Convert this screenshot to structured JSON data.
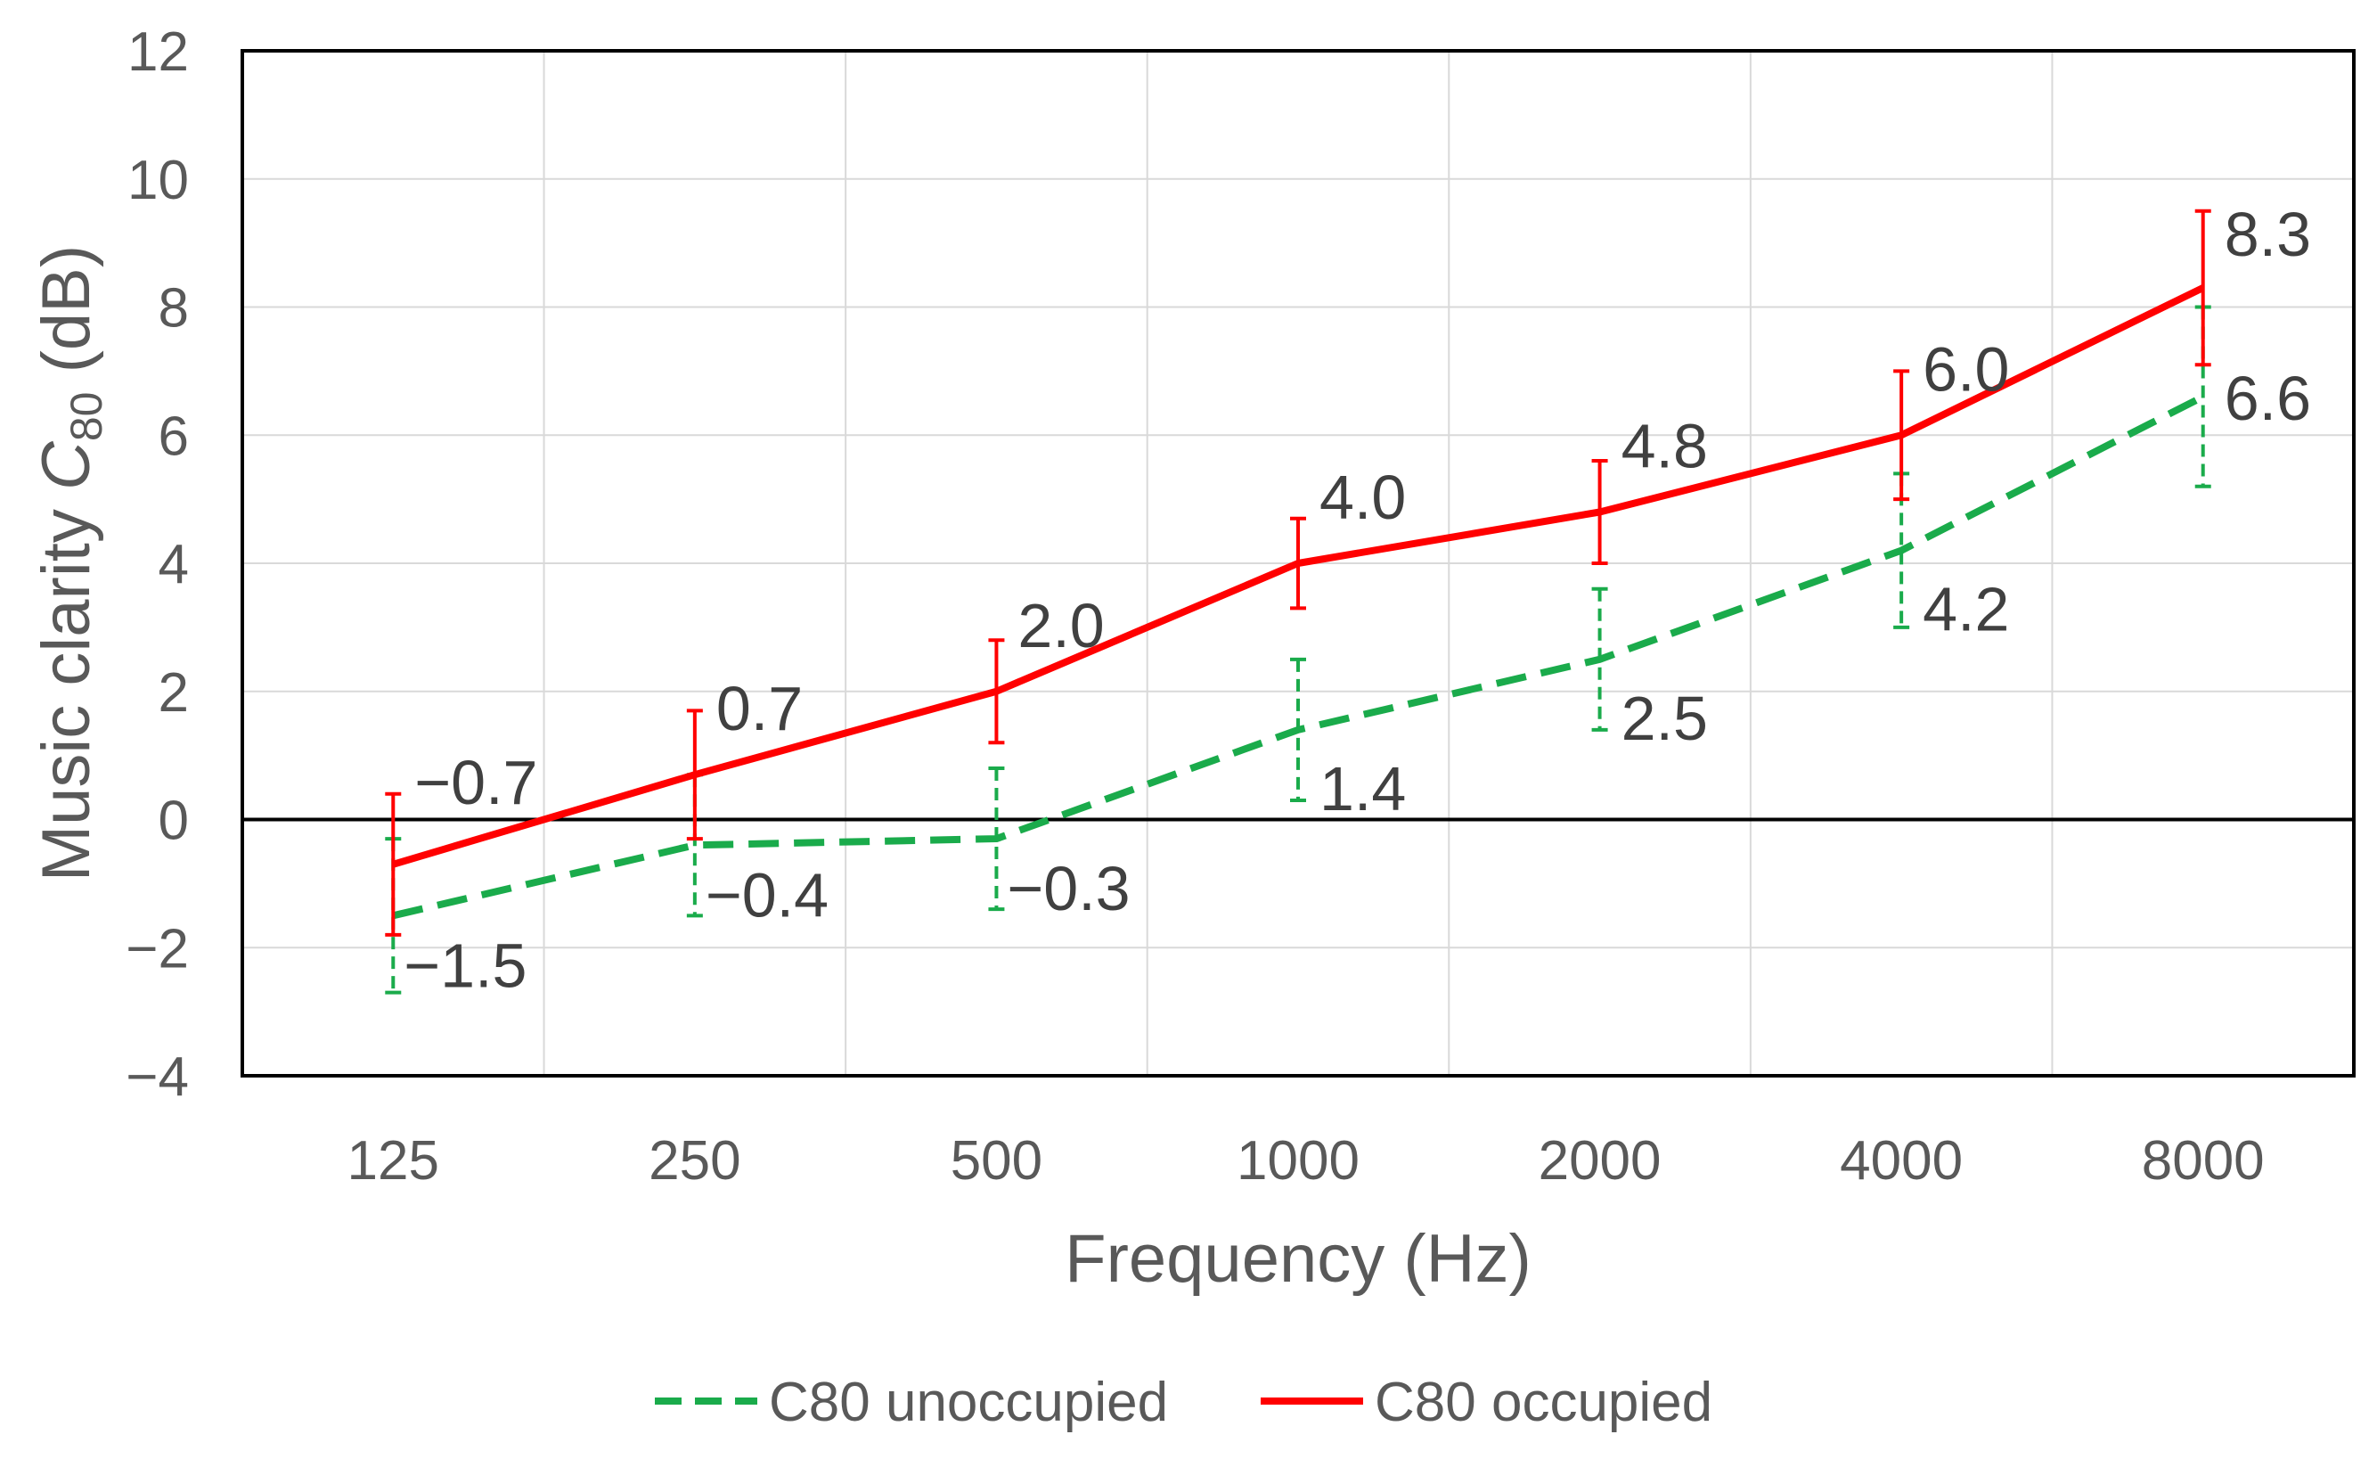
{
  "chart_data": {
    "type": "line",
    "categories": [
      "125",
      "250",
      "500",
      "1000",
      "2000",
      "4000",
      "8000"
    ],
    "xlabel": "Frequency (Hz)",
    "ylabel": {
      "prefix": "Music clarity ",
      "symbol": "C",
      "subscript": "80",
      "suffix": " (dB)"
    },
    "ylim": [
      -4,
      12
    ],
    "yticks": [
      -4,
      -2,
      0,
      2,
      4,
      6,
      8,
      10,
      12
    ],
    "ytick_labels": [
      "−4",
      "−2",
      "0",
      "2",
      "4",
      "6",
      "8",
      "10",
      "12"
    ],
    "grid": true,
    "legend_position": "bottom",
    "series": [
      {
        "name": "C80 unoccupied",
        "style": "dashed",
        "color": "#1aab4b",
        "values": [
          -1.5,
          -0.4,
          -0.3,
          1.4,
          2.5,
          4.2,
          6.6
        ],
        "labels": [
          "−1.5",
          "−0.4",
          "−0.3",
          "1.4",
          "2.5",
          "4.2",
          "6.6"
        ],
        "err_low": [
          -2.7,
          -1.5,
          -1.4,
          0.3,
          1.4,
          3.0,
          5.2
        ],
        "err_high": [
          -0.3,
          0.7,
          0.8,
          2.5,
          3.6,
          5.4,
          8.0
        ]
      },
      {
        "name": "C80 occupied",
        "style": "solid",
        "color": "#ff0000",
        "values": [
          -0.7,
          0.7,
          2.0,
          4.0,
          4.8,
          6.0,
          8.3
        ],
        "labels": [
          "−0.7",
          "0.7",
          "2.0",
          "4.0",
          "4.8",
          "6.0",
          "8.3"
        ],
        "err_low": [
          -1.8,
          -0.3,
          1.2,
          3.3,
          4.0,
          5.0,
          7.1
        ],
        "err_high": [
          0.4,
          1.7,
          2.8,
          4.7,
          5.6,
          7.0,
          9.5
        ]
      }
    ]
  }
}
